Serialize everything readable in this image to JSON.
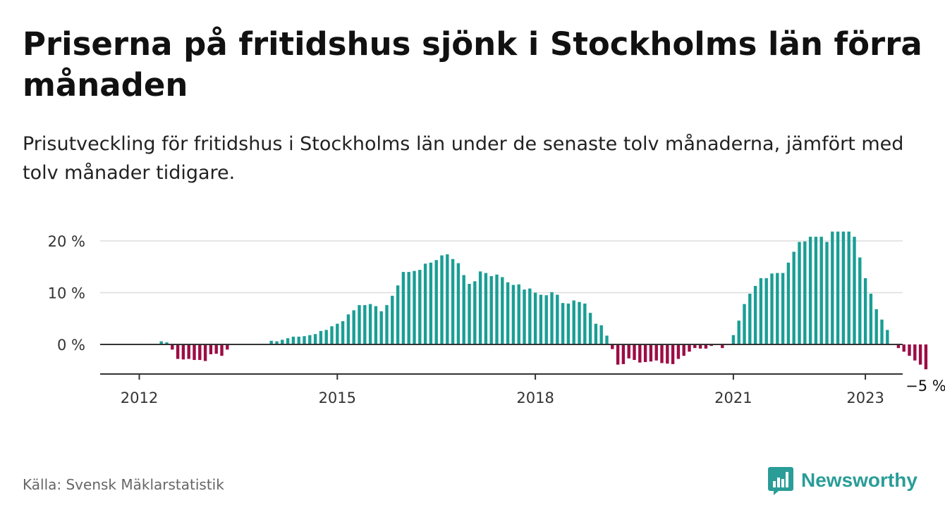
{
  "header": {
    "title": "Priserna på fritidshus sjönk i Stockholms län förra månaden",
    "subtitle": "Prisutveckling för fritidshus i Stockholms län under de senaste tolv månaderna, jämfört med tolv månader tidigare."
  },
  "footer": {
    "source": "Källa: Svensk Mäklarstatistik",
    "brand": "Newsworthy"
  },
  "colors": {
    "positive": "#1a9e96",
    "negative": "#9c0c45",
    "brand": "#2a9d98",
    "gridline": "#dddddd",
    "baseline": "#333333"
  },
  "chart_data": {
    "type": "bar",
    "x_start": "2012-01",
    "interval": "month",
    "values": [
      null,
      null,
      null,
      null,
      0.6,
      0.4,
      -1,
      -2.8,
      -2.9,
      -2.8,
      -3,
      -3,
      -3.2,
      -1.9,
      -1.8,
      -2.2,
      -1,
      null,
      null,
      null,
      null,
      null,
      null,
      null,
      0.7,
      0.6,
      0.9,
      1.2,
      1.5,
      1.5,
      1.6,
      1.8,
      2,
      2.6,
      2.8,
      3.5,
      4,
      4.5,
      5.8,
      6.6,
      7.6,
      7.6,
      7.8,
      7.4,
      6.4,
      7.6,
      9.4,
      11.4,
      14,
      14,
      14.2,
      14.4,
      15.6,
      15.8,
      16.3,
      17.2,
      17.4,
      16.5,
      15.7,
      13.4,
      11.7,
      12.2,
      14.1,
      13.8,
      13.2,
      13.5,
      13,
      12,
      11.5,
      11.6,
      10.6,
      10.8,
      10,
      9.6,
      9.5,
      10.1,
      9.6,
      8,
      7.9,
      8.5,
      8.2,
      7.9,
      6.1,
      4,
      3.7,
      1.7,
      -0.9,
      -3.9,
      -3.8,
      -2.7,
      -3,
      -3.5,
      -3.4,
      -3.3,
      -3.1,
      -3.6,
      -3.7,
      -3.8,
      -2.8,
      -2.2,
      -1.4,
      -0.7,
      -0.8,
      -0.8,
      -0.3,
      null,
      -0.7,
      null,
      1.8,
      4.6,
      7.8,
      9.8,
      11.3,
      12.8,
      12.8,
      13.7,
      13.8,
      13.8,
      15.8,
      17.9,
      19.8,
      19.9,
      20.8,
      20.8,
      20.8,
      19.8,
      21.8,
      21.8,
      21.8,
      21.8,
      20.8,
      16.8,
      12.8,
      9.8,
      6.8,
      4.8,
      2.8,
      null,
      -0.7,
      -1.4,
      -2.2,
      -3.1,
      -3.9,
      -4.8
    ],
    "yticks": [
      0,
      10,
      20
    ],
    "ytick_labels": [
      "0 %",
      "10 %",
      "20 %"
    ],
    "ylim": [
      -6,
      23
    ],
    "xticks": [
      "2012",
      "2015",
      "2018",
      "2021",
      "2023"
    ],
    "last_value_label": "−5 %",
    "xlabel": "",
    "ylabel": "",
    "grid": true
  }
}
